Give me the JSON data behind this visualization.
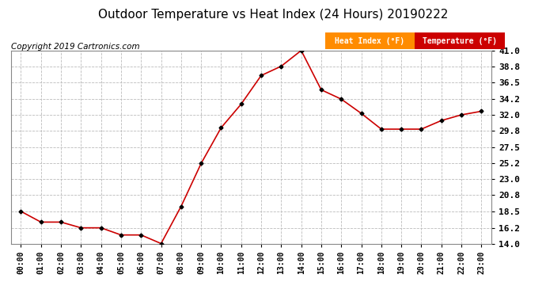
{
  "title": "Outdoor Temperature vs Heat Index (24 Hours) 20190222",
  "copyright": "Copyright 2019 Cartronics.com",
  "legend_labels": [
    "Heat Index (°F)",
    "Temperature (°F)"
  ],
  "legend_colors": [
    "#ff8c00",
    "#cc0000"
  ],
  "x_labels": [
    "00:00",
    "01:00",
    "02:00",
    "03:00",
    "04:00",
    "05:00",
    "06:00",
    "07:00",
    "08:00",
    "09:00",
    "10:00",
    "11:00",
    "12:00",
    "13:00",
    "14:00",
    "15:00",
    "16:00",
    "17:00",
    "18:00",
    "19:00",
    "20:00",
    "21:00",
    "22:00",
    "23:00"
  ],
  "temperature": [
    18.5,
    17.0,
    17.0,
    16.2,
    16.2,
    15.2,
    15.2,
    14.0,
    19.2,
    25.2,
    30.2,
    33.5,
    37.5,
    38.8,
    41.0,
    35.5,
    34.2,
    32.2,
    30.0,
    30.0,
    30.0,
    31.2,
    32.0,
    32.5
  ],
  "line_color": "#cc0000",
  "marker_color": "#000000",
  "ylim": [
    14.0,
    41.0
  ],
  "yticks": [
    14.0,
    16.2,
    18.5,
    20.8,
    23.0,
    25.2,
    27.5,
    29.8,
    32.0,
    34.2,
    36.5,
    38.8,
    41.0
  ],
  "grid_color": "#bbbbbb",
  "bg_color": "#ffffff",
  "title_fontsize": 11,
  "copyright_fontsize": 7.5
}
